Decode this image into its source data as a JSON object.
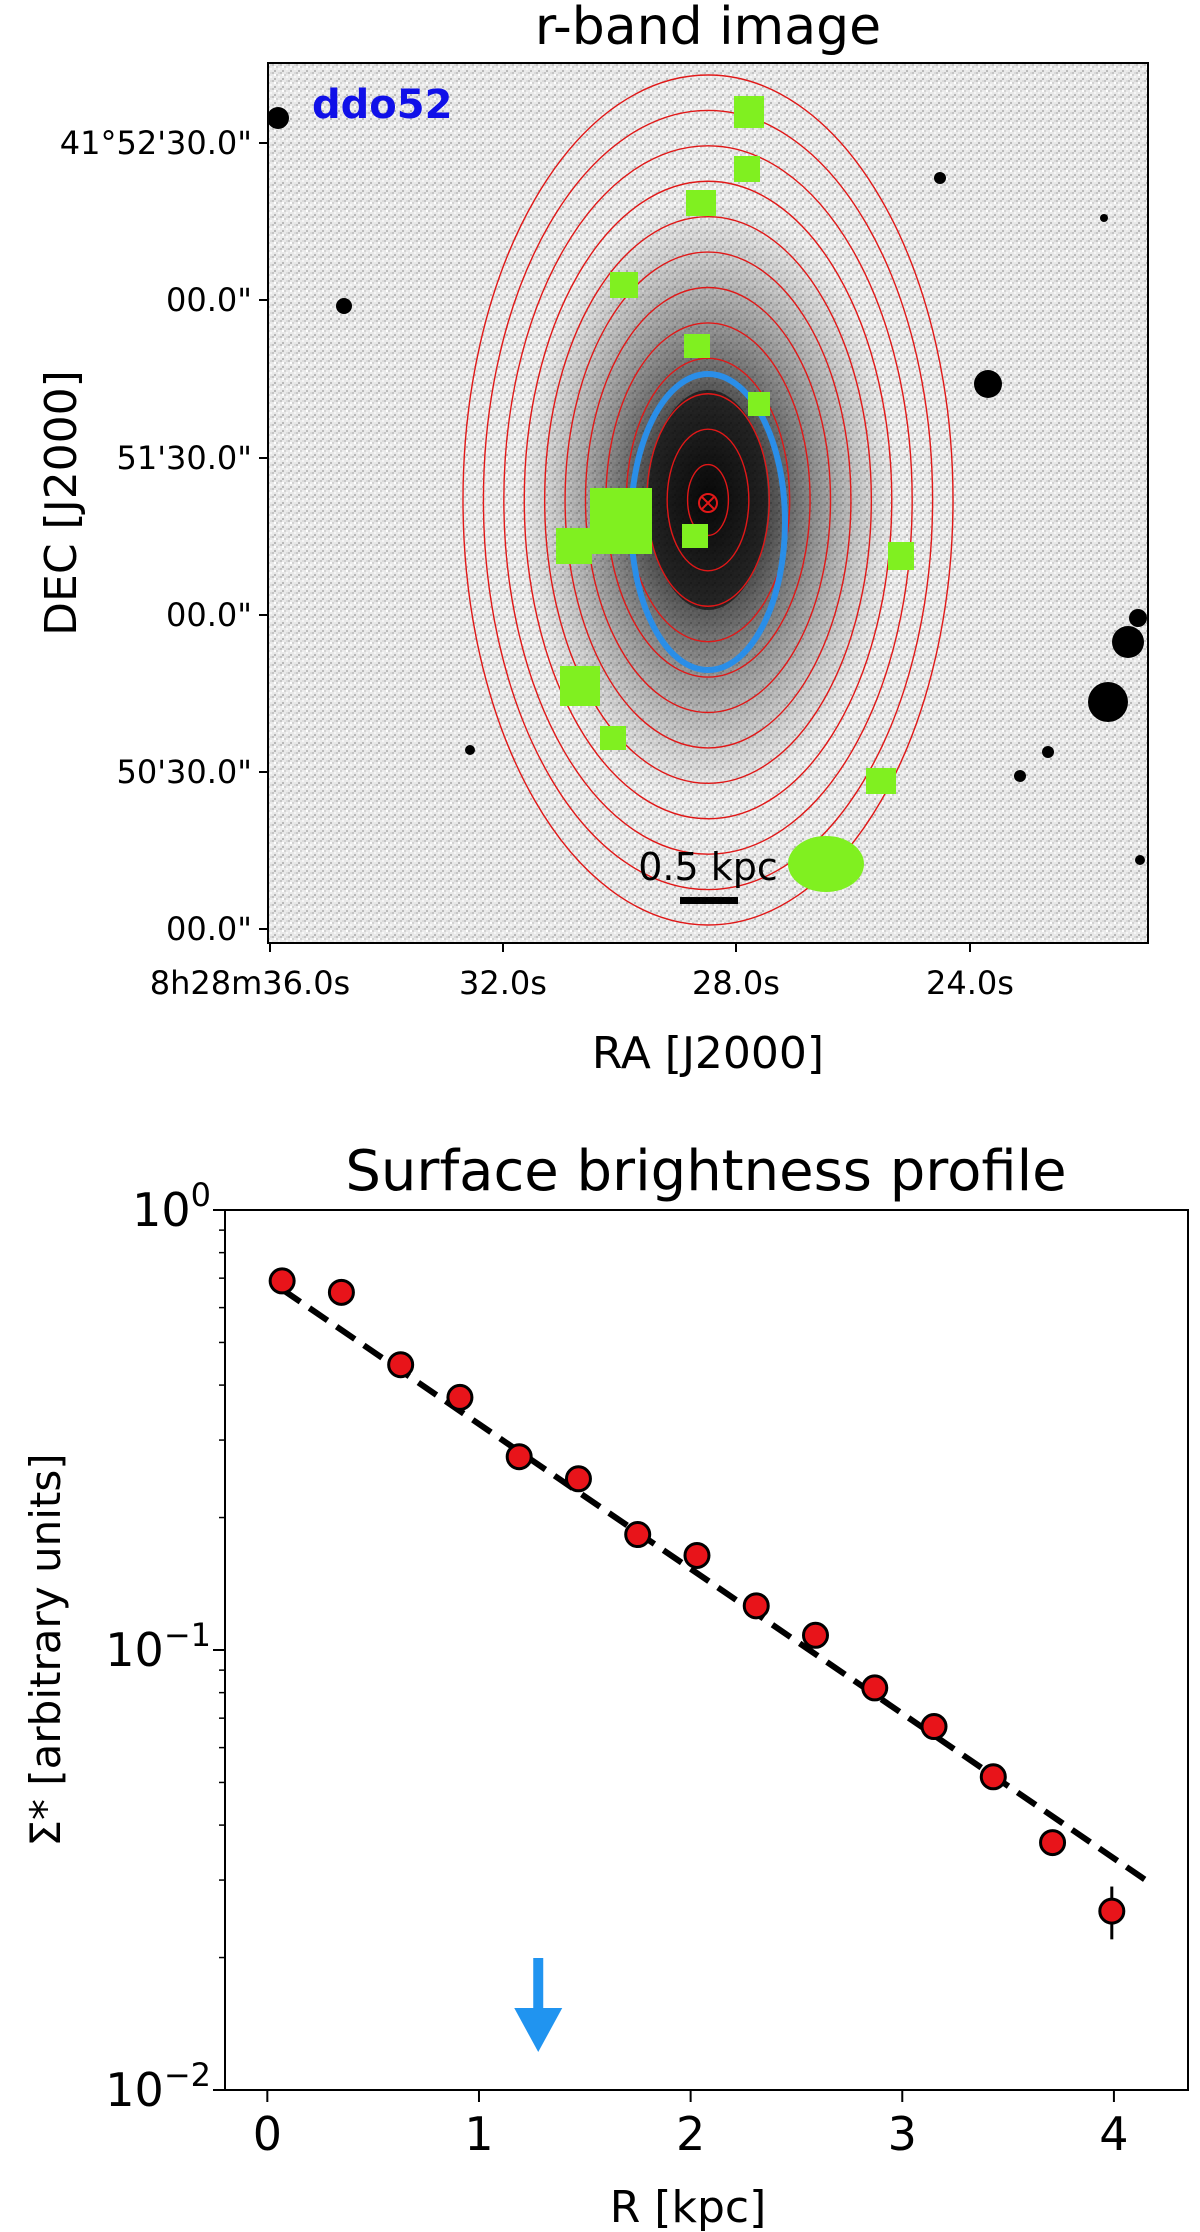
{
  "chart_data": [
    {
      "type": "image",
      "title": "r-band image",
      "galaxy_label": "ddo52",
      "xlabel": "RA [J2000]",
      "ylabel": "DEC [J2000]",
      "x_ticks": [
        "8h28m36.0s",
        "32.0s",
        "28.0s",
        "24.0s"
      ],
      "y_ticks": [
        "41°52'30.0\"",
        "00.0\"",
        "51'30.0\"",
        "00.0\"",
        "50'30.0\"",
        "00.0\""
      ],
      "scale_bar_label": "0.5 kpc",
      "isophote_count": 12,
      "colors": {
        "galaxy_label": "#1010e8",
        "isophotes": "#e01818",
        "highlight_ellipse": "#2a8ee8",
        "masks": "#80f020"
      }
    },
    {
      "type": "scatter",
      "title": "Surface brightness profile",
      "xlabel": "R [kpc]",
      "ylabel": "Σ* [arbitrary units]",
      "xlim": [
        -0.2,
        4.35
      ],
      "ylim": [
        0.01,
        1.0
      ],
      "yscale": "log",
      "x_ticks": [
        {
          "value": 0,
          "label": "0"
        },
        {
          "value": 1,
          "label": "1"
        },
        {
          "value": 2,
          "label": "2"
        },
        {
          "value": 3,
          "label": "3"
        },
        {
          "value": 4,
          "label": "4"
        }
      ],
      "y_ticks": [
        {
          "value": 1,
          "base": "10",
          "exp": "0"
        },
        {
          "value": 0.1,
          "base": "10",
          "exp": "−1"
        },
        {
          "value": 0.01,
          "base": "10",
          "exp": "−2"
        }
      ],
      "series": [
        {
          "name": "data",
          "x": [
            0.07,
            0.35,
            0.63,
            0.91,
            1.19,
            1.47,
            1.75,
            2.03,
            2.31,
            2.59,
            2.87,
            3.15,
            3.43,
            3.71,
            3.99
          ],
          "y": [
            0.69,
            0.65,
            0.445,
            0.375,
            0.275,
            0.245,
            0.183,
            0.164,
            0.126,
            0.108,
            0.082,
            0.067,
            0.0515,
            0.0365,
            0.0255
          ],
          "yerr": [
            0.02,
            0.02,
            0.012,
            0.01,
            0.008,
            0.007,
            0.005,
            0.005,
            0.004,
            0.003,
            0.0025,
            0.002,
            0.0018,
            0.0015,
            0.0035
          ],
          "color": "#e8141a"
        },
        {
          "name": "exponential fit",
          "x": [
            0.07,
            4.15
          ],
          "y": [
            0.66,
            0.03
          ],
          "color": "#000000"
        }
      ],
      "marker_arrow_x": 1.28,
      "marker_arrow_color": "#2094f0"
    }
  ]
}
